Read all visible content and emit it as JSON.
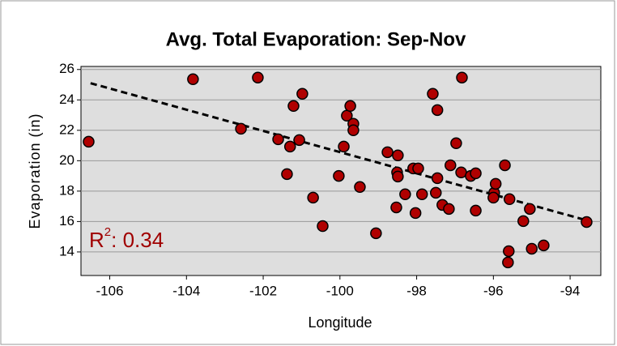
{
  "chart_data": {
    "type": "scatter",
    "title": "Avg. Total Evaporation: Sep-Nov",
    "x_label": "Longitude",
    "y_label": "Evaporation (in)",
    "annotation": {
      "symbol": "R",
      "exponent": "2",
      "text": ": 0.34",
      "color": "#a00000"
    },
    "color": "#b00000",
    "x": [
      -106.55,
      -103.83,
      -102.14,
      -102.58,
      -101.61,
      -100.98,
      -101.21,
      -101.06,
      -101.38,
      -101.3,
      -100.7,
      -100.45,
      -100.03,
      -99.9,
      -99.82,
      -99.73,
      -99.65,
      -99.65,
      -99.48,
      -99.06,
      -98.76,
      -98.49,
      -98.51,
      -98.49,
      -98.53,
      -98.3,
      -98.09,
      -97.96,
      -98.03,
      -97.86,
      -97.58,
      -97.46,
      -97.46,
      -97.5,
      -97.33,
      -97.16,
      -97.12,
      -96.97,
      -96.84,
      -96.82,
      -96.59,
      -96.46,
      -96.46,
      -95.98,
      -95.94,
      -96.0,
      -95.7,
      -95.58,
      -95.6,
      -95.62,
      -95.22,
      -95.05,
      -95.0,
      -94.69,
      -93.57
    ],
    "values": [
      21.25,
      25.36,
      25.47,
      22.1,
      21.41,
      24.4,
      23.6,
      21.36,
      19.12,
      20.93,
      17.57,
      15.7,
      19.0,
      20.93,
      22.96,
      23.6,
      22.43,
      22.0,
      18.27,
      15.23,
      20.56,
      20.35,
      19.23,
      18.96,
      16.93,
      17.79,
      19.49,
      19.49,
      16.56,
      17.79,
      24.4,
      23.33,
      18.85,
      17.89,
      17.09,
      16.83,
      19.7,
      21.15,
      19.23,
      25.47,
      19.0,
      19.17,
      16.72,
      17.89,
      18.48,
      17.57,
      19.7,
      17.47,
      14.05,
      13.31,
      16.03,
      16.83,
      14.21,
      14.43,
      15.97
    ],
    "trendline": {
      "x": [
        -106.5,
        -93.6
      ],
      "y": [
        25.1,
        16.1
      ]
    },
    "xlim": [
      -106.75,
      -93.2
    ],
    "ylim": [
      12.45,
      26.2
    ],
    "xticks": [
      -106,
      -104,
      -102,
      -100,
      -98,
      -96,
      -94
    ],
    "yticks": [
      14,
      16,
      18,
      20,
      22,
      24,
      26
    ],
    "grid": true
  }
}
